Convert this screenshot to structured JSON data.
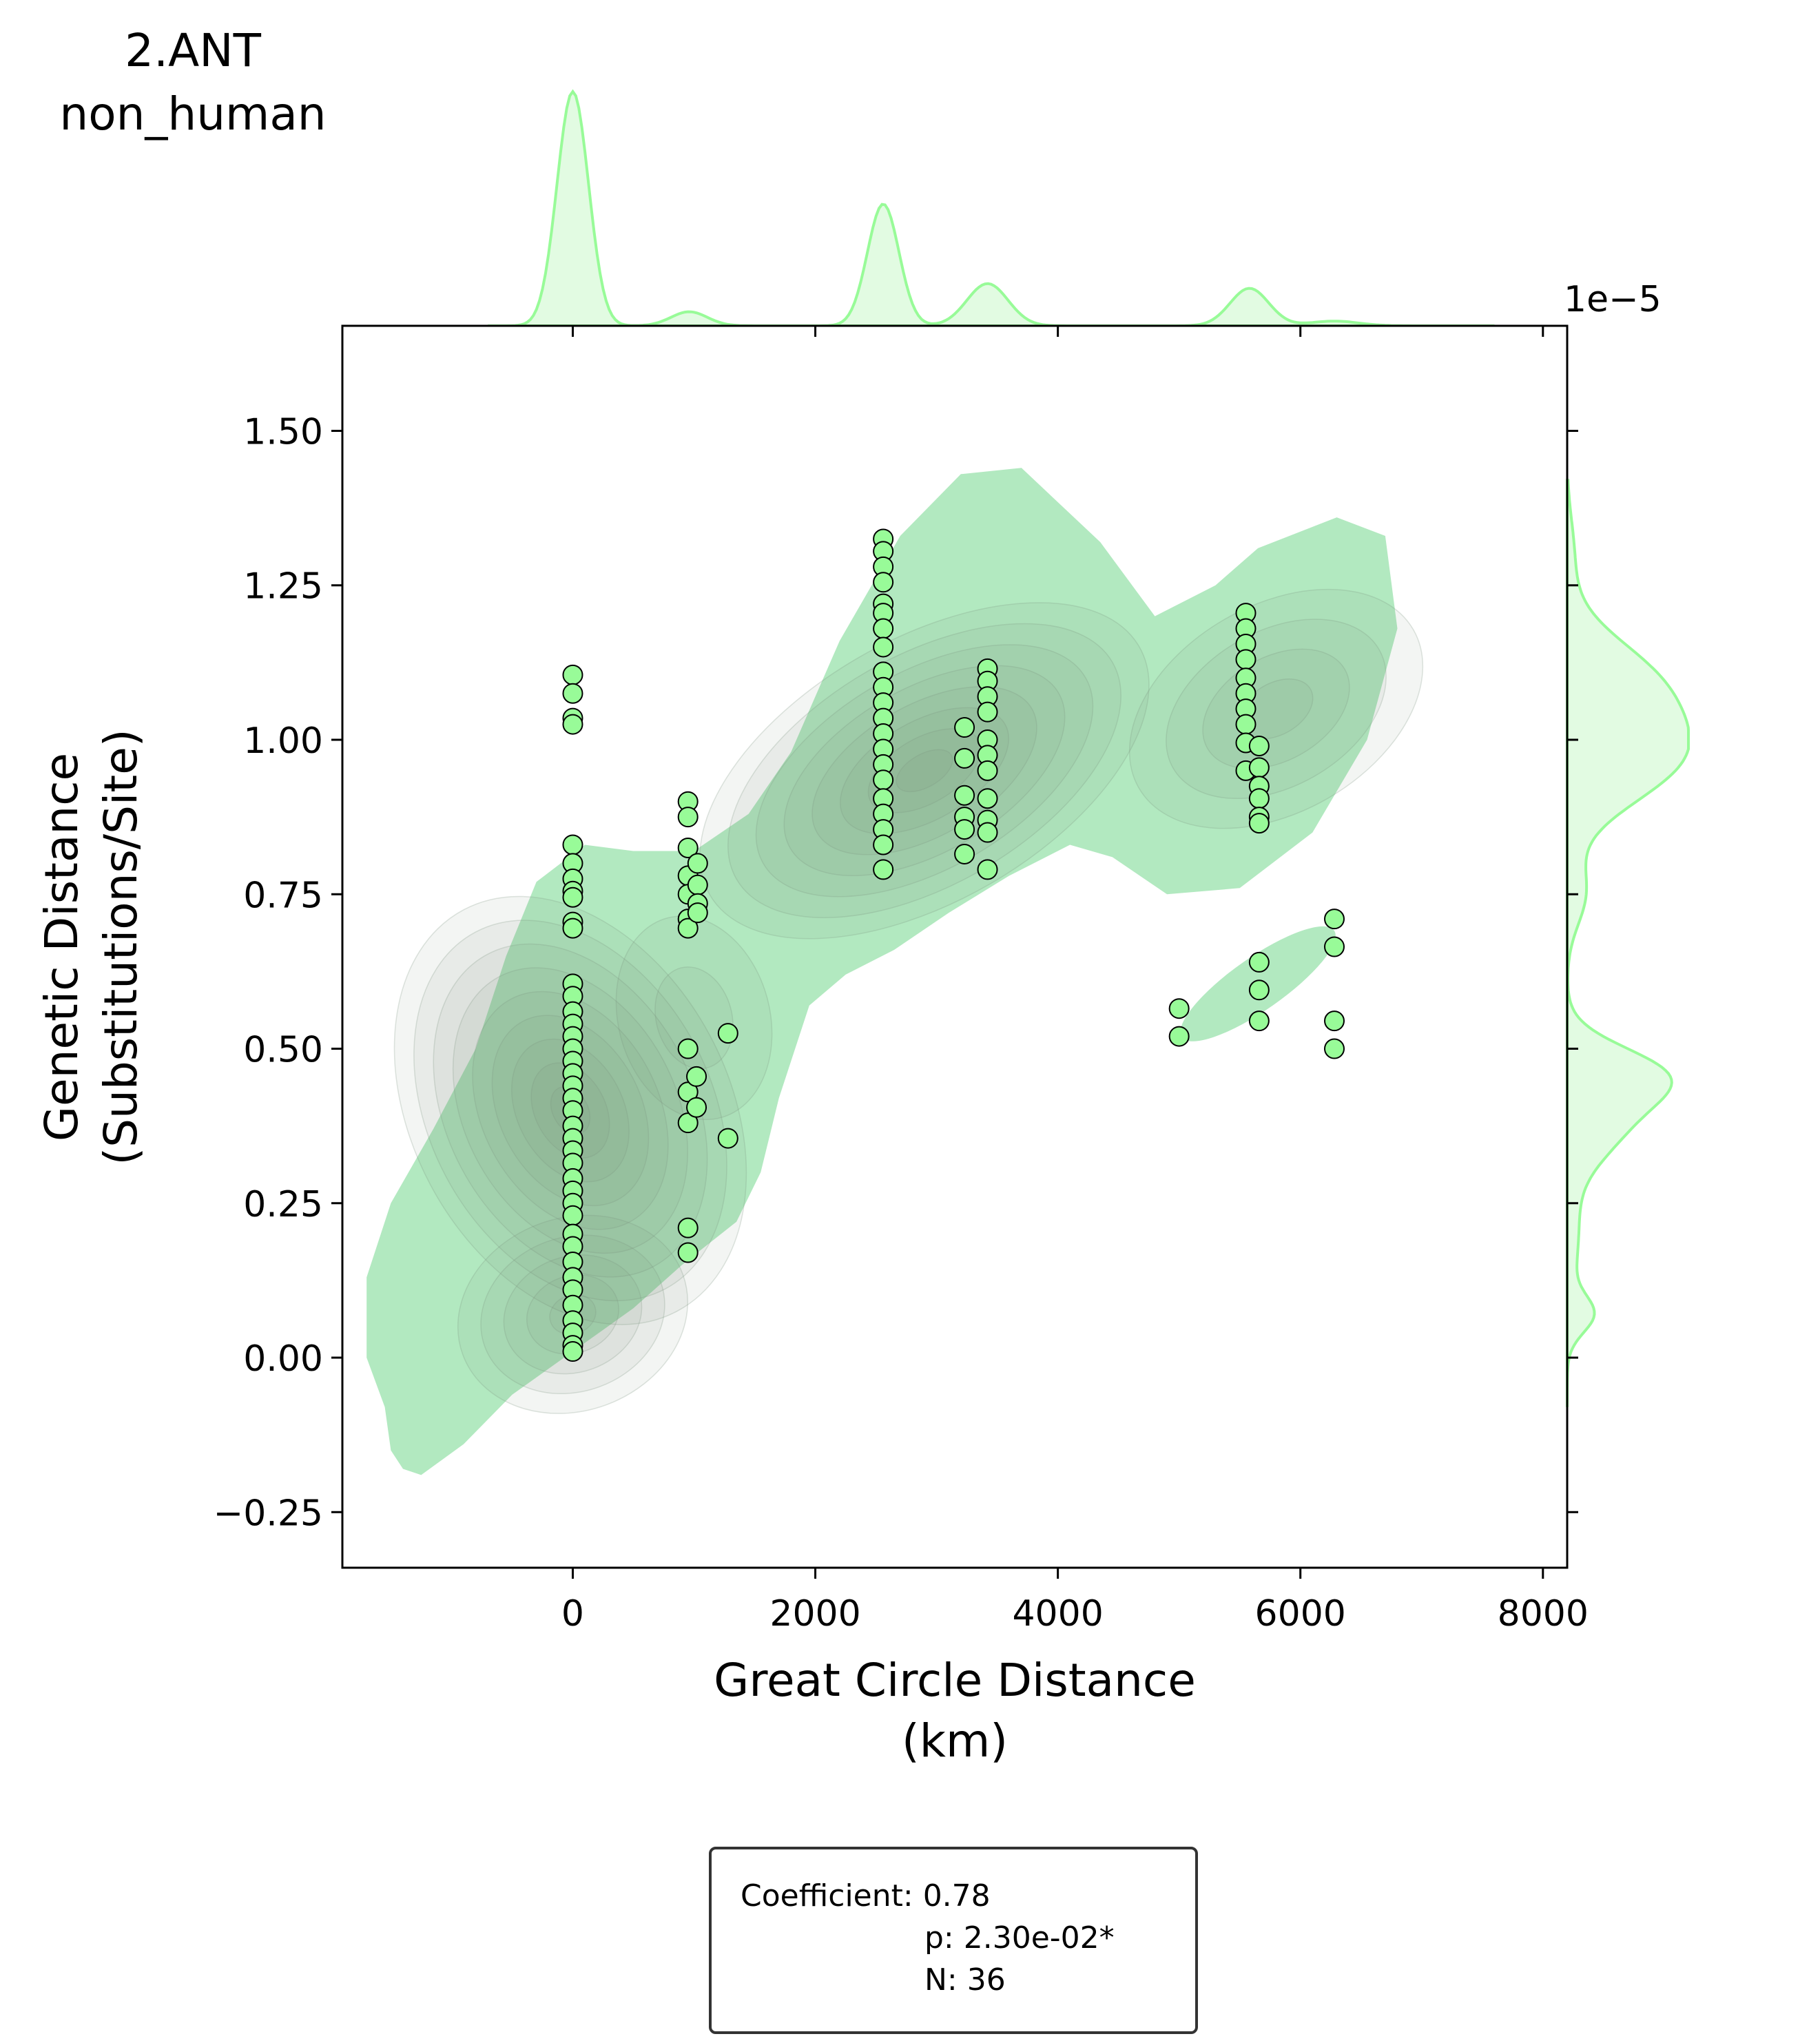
{
  "title": {
    "line1": "2.ANT",
    "line2": "non_human"
  },
  "chart_data": {
    "type": "scatter",
    "xlabel": {
      "line1": "Great Circle Distance",
      "line2": "(km)"
    },
    "ylabel": {
      "line1": "Genetic Distance",
      "line2": "(Substitutions/Site)"
    },
    "y_offset_text": "1e−5",
    "y_scale": 1e-05,
    "xlim": [
      -1900,
      8200
    ],
    "ylim": [
      -0.34,
      1.67
    ],
    "xticks": [
      0,
      2000,
      4000,
      6000,
      8000
    ],
    "xtick_labels": [
      "0",
      "2000",
      "4000",
      "6000",
      "8000"
    ],
    "yticks": [
      -0.25,
      0.0,
      0.25,
      0.5,
      0.75,
      1.0,
      1.25,
      1.5
    ],
    "ytick_labels": [
      "−0.25",
      "0.00",
      "0.25",
      "0.50",
      "0.75",
      "1.00",
      "1.25",
      "1.50"
    ],
    "grid": false,
    "colors": {
      "point": "#98fb98",
      "point_edge": "#000000",
      "kde": "#98fb98",
      "kde_outer": "#b2e9c0",
      "kde_dark": "#7a957f"
    },
    "points": [
      {
        "x": 0,
        "y": 1.105
      },
      {
        "x": 0,
        "y": 1.075
      },
      {
        "x": 0,
        "y": 1.035
      },
      {
        "x": 0,
        "y": 1.025
      },
      {
        "x": 0,
        "y": 0.83
      },
      {
        "x": 0,
        "y": 0.8
      },
      {
        "x": 0,
        "y": 0.775
      },
      {
        "x": 0,
        "y": 0.755
      },
      {
        "x": 0,
        "y": 0.745
      },
      {
        "x": 0,
        "y": 0.705
      },
      {
        "x": 0,
        "y": 0.695
      },
      {
        "x": 0,
        "y": 0.605
      },
      {
        "x": 0,
        "y": 0.585
      },
      {
        "x": 0,
        "y": 0.56
      },
      {
        "x": 0,
        "y": 0.54
      },
      {
        "x": 0,
        "y": 0.52
      },
      {
        "x": 0,
        "y": 0.5
      },
      {
        "x": 0,
        "y": 0.48
      },
      {
        "x": 0,
        "y": 0.46
      },
      {
        "x": 0,
        "y": 0.44
      },
      {
        "x": 0,
        "y": 0.42
      },
      {
        "x": 0,
        "y": 0.4
      },
      {
        "x": 0,
        "y": 0.375
      },
      {
        "x": 0,
        "y": 0.355
      },
      {
        "x": 0,
        "y": 0.335
      },
      {
        "x": 0,
        "y": 0.315
      },
      {
        "x": 0,
        "y": 0.29
      },
      {
        "x": 0,
        "y": 0.27
      },
      {
        "x": 0,
        "y": 0.25
      },
      {
        "x": 0,
        "y": 0.23
      },
      {
        "x": 0,
        "y": 0.2
      },
      {
        "x": 0,
        "y": 0.18
      },
      {
        "x": 0,
        "y": 0.155
      },
      {
        "x": 0,
        "y": 0.13
      },
      {
        "x": 0,
        "y": 0.11
      },
      {
        "x": 0,
        "y": 0.085
      },
      {
        "x": 0,
        "y": 0.06
      },
      {
        "x": 0,
        "y": 0.04
      },
      {
        "x": 0,
        "y": 0.02
      },
      {
        "x": 0,
        "y": 0.01
      },
      {
        "x": 950,
        "y": 0.9
      },
      {
        "x": 950,
        "y": 0.875
      },
      {
        "x": 950,
        "y": 0.825
      },
      {
        "x": 950,
        "y": 0.78
      },
      {
        "x": 950,
        "y": 0.75
      },
      {
        "x": 950,
        "y": 0.71
      },
      {
        "x": 950,
        "y": 0.695
      },
      {
        "x": 1030,
        "y": 0.8
      },
      {
        "x": 1030,
        "y": 0.765
      },
      {
        "x": 1030,
        "y": 0.735
      },
      {
        "x": 1030,
        "y": 0.72
      },
      {
        "x": 950,
        "y": 0.5
      },
      {
        "x": 950,
        "y": 0.43
      },
      {
        "x": 950,
        "y": 0.38
      },
      {
        "x": 1020,
        "y": 0.455
      },
      {
        "x": 1020,
        "y": 0.405
      },
      {
        "x": 1280,
        "y": 0.525
      },
      {
        "x": 1280,
        "y": 0.355
      },
      {
        "x": 950,
        "y": 0.21
      },
      {
        "x": 950,
        "y": 0.17
      },
      {
        "x": 2560,
        "y": 1.325
      },
      {
        "x": 2560,
        "y": 1.305
      },
      {
        "x": 2560,
        "y": 1.28
      },
      {
        "x": 2560,
        "y": 1.255
      },
      {
        "x": 2560,
        "y": 1.22
      },
      {
        "x": 2560,
        "y": 1.205
      },
      {
        "x": 2560,
        "y": 1.18
      },
      {
        "x": 2560,
        "y": 1.15
      },
      {
        "x": 2560,
        "y": 1.11
      },
      {
        "x": 2560,
        "y": 1.085
      },
      {
        "x": 2560,
        "y": 1.06
      },
      {
        "x": 2560,
        "y": 1.035
      },
      {
        "x": 2560,
        "y": 1.01
      },
      {
        "x": 2560,
        "y": 0.985
      },
      {
        "x": 2560,
        "y": 0.96
      },
      {
        "x": 2560,
        "y": 0.935
      },
      {
        "x": 2560,
        "y": 0.905
      },
      {
        "x": 2560,
        "y": 0.88
      },
      {
        "x": 2560,
        "y": 0.855
      },
      {
        "x": 2560,
        "y": 0.83
      },
      {
        "x": 2560,
        "y": 0.79
      },
      {
        "x": 3230,
        "y": 1.02
      },
      {
        "x": 3230,
        "y": 0.97
      },
      {
        "x": 3230,
        "y": 0.91
      },
      {
        "x": 3230,
        "y": 0.875
      },
      {
        "x": 3230,
        "y": 0.855
      },
      {
        "x": 3230,
        "y": 0.815
      },
      {
        "x": 3420,
        "y": 1.115
      },
      {
        "x": 3420,
        "y": 1.095
      },
      {
        "x": 3420,
        "y": 1.07
      },
      {
        "x": 3420,
        "y": 1.045
      },
      {
        "x": 3420,
        "y": 1.0
      },
      {
        "x": 3420,
        "y": 0.975
      },
      {
        "x": 3420,
        "y": 0.95
      },
      {
        "x": 3420,
        "y": 0.905
      },
      {
        "x": 3420,
        "y": 0.87
      },
      {
        "x": 3420,
        "y": 0.85
      },
      {
        "x": 3420,
        "y": 0.79
      },
      {
        "x": 5550,
        "y": 1.205
      },
      {
        "x": 5550,
        "y": 1.18
      },
      {
        "x": 5550,
        "y": 1.155
      },
      {
        "x": 5550,
        "y": 1.13
      },
      {
        "x": 5550,
        "y": 1.1
      },
      {
        "x": 5550,
        "y": 1.075
      },
      {
        "x": 5550,
        "y": 1.05
      },
      {
        "x": 5550,
        "y": 1.025
      },
      {
        "x": 5550,
        "y": 0.995
      },
      {
        "x": 5550,
        "y": 0.95
      },
      {
        "x": 5660,
        "y": 0.99
      },
      {
        "x": 5660,
        "y": 0.955
      },
      {
        "x": 5660,
        "y": 0.925
      },
      {
        "x": 5660,
        "y": 0.905
      },
      {
        "x": 5660,
        "y": 0.875
      },
      {
        "x": 5660,
        "y": 0.865
      },
      {
        "x": 5000,
        "y": 0.565
      },
      {
        "x": 5000,
        "y": 0.52
      },
      {
        "x": 5660,
        "y": 0.64
      },
      {
        "x": 5660,
        "y": 0.595
      },
      {
        "x": 5660,
        "y": 0.545
      },
      {
        "x": 6280,
        "y": 0.71
      },
      {
        "x": 6280,
        "y": 0.665
      },
      {
        "x": 6280,
        "y": 0.545
      },
      {
        "x": 6280,
        "y": 0.5
      }
    ]
  },
  "stats": {
    "line1": "Coefficient: 0.78",
    "line2": "p: 2.30e-02*",
    "line3": "N: 36"
  }
}
